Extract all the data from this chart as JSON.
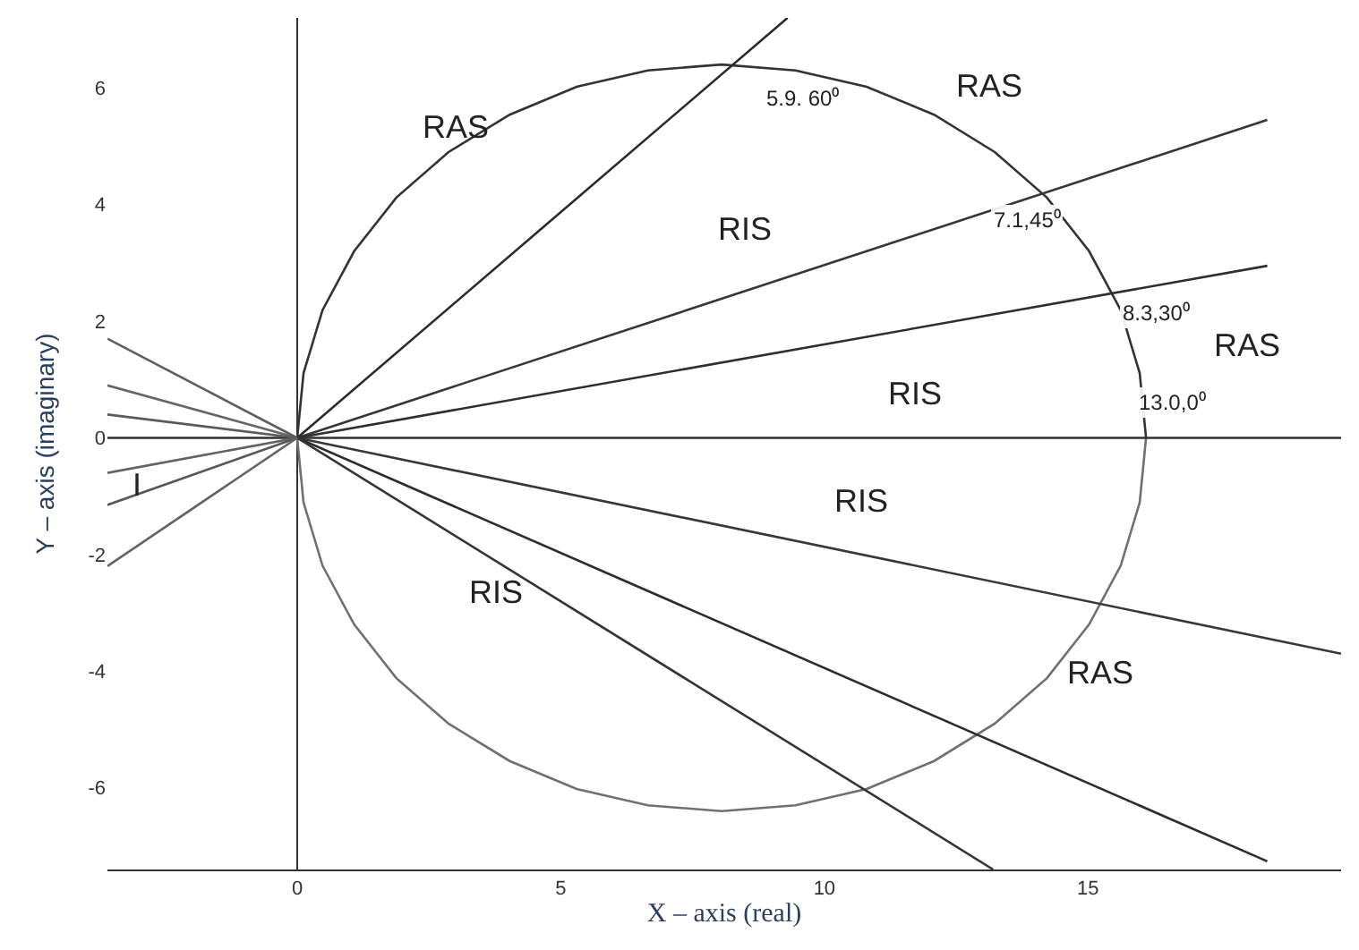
{
  "chart_data": {
    "type": "line",
    "xlabel": "X – axis (real)",
    "ylabel": "Y – axis (imaginary)",
    "xlim": [
      -3.6,
      19.8
    ],
    "ylim": [
      -7.4,
      7.2
    ],
    "xticks": [
      0,
      5,
      10,
      15
    ],
    "yticks": [
      -6,
      -4,
      -2,
      0,
      2,
      4,
      6
    ],
    "line_style": "solid",
    "series": [
      {
        "color": "#333333",
        "x": [
          0,
          0.12,
          0.48,
          1.08,
          1.88,
          2.87,
          4.03,
          5.3,
          6.65,
          8.05,
          9.45,
          10.8,
          12.08,
          13.23,
          14.22,
          15.02,
          15.62,
          15.98,
          16.1
        ],
        "values": [
          0,
          1.11,
          2.19,
          3.2,
          4.12,
          4.9,
          5.54,
          6.02,
          6.3,
          6.4,
          6.3,
          6.02,
          5.54,
          4.9,
          4.12,
          3.2,
          2.19,
          1.11,
          0
        ]
      },
      {
        "color": "#707070",
        "x": [
          0,
          0.12,
          0.48,
          1.08,
          1.88,
          2.87,
          4.03,
          5.3,
          6.65,
          8.05,
          9.45,
          10.8,
          12.08,
          13.23,
          14.22,
          15.02,
          15.62,
          15.98,
          16.1
        ],
        "values": [
          0,
          -1.11,
          -2.19,
          -3.2,
          -4.12,
          -4.9,
          -5.54,
          -6.02,
          -6.3,
          -6.4,
          -6.3,
          -6.02,
          -5.54,
          -4.9,
          -4.12,
          -3.2,
          -2.19,
          -1.11,
          0
        ]
      },
      {
        "color": "#2a2a2a",
        "x": [
          0,
          9.3
        ],
        "values": [
          0,
          7.2
        ]
      },
      {
        "color": "#363636",
        "x": [
          0,
          18.4
        ],
        "values": [
          0,
          5.45
        ]
      },
      {
        "color": "#2e2e2e",
        "x": [
          0,
          18.4
        ],
        "values": [
          0,
          2.95
        ]
      },
      {
        "color": "#303030",
        "x": [
          -3.6,
          19.8
        ],
        "values": [
          0,
          0
        ]
      },
      {
        "color": "#383838",
        "x": [
          0,
          19.8
        ],
        "values": [
          0,
          -3.7
        ]
      },
      {
        "color": "#2c2c2c",
        "x": [
          0,
          18.4
        ],
        "values": [
          0,
          -7.26
        ]
      },
      {
        "color": "#343434",
        "x": [
          0,
          13.2
        ],
        "values": [
          0,
          -7.4
        ]
      },
      {
        "color": "#5e5e5e",
        "x": [
          -3.6,
          0
        ],
        "values": [
          1.7,
          0
        ]
      },
      {
        "color": "#666666",
        "x": [
          -3.6,
          0
        ],
        "values": [
          0.9,
          0
        ]
      },
      {
        "color": "#5a5a5a",
        "x": [
          -3.6,
          0
        ],
        "values": [
          0.4,
          0
        ]
      },
      {
        "color": "#626262",
        "x": [
          -3.6,
          0
        ],
        "values": [
          -0.6,
          0
        ]
      },
      {
        "color": "#585858",
        "x": [
          -3.6,
          0
        ],
        "values": [
          -1.15,
          0
        ]
      },
      {
        "color": "#646464",
        "x": [
          -3.6,
          0
        ],
        "values": [
          -2.2,
          0
        ]
      }
    ],
    "annotations": [
      "RAS",
      "RAS",
      "RIS",
      "5.9. 60⁰",
      "7.1,45⁰",
      "8.3,30⁰",
      "RAS",
      "RIS",
      "13.0,0⁰",
      "RIS",
      "RIS",
      "RAS",
      "I"
    ]
  }
}
